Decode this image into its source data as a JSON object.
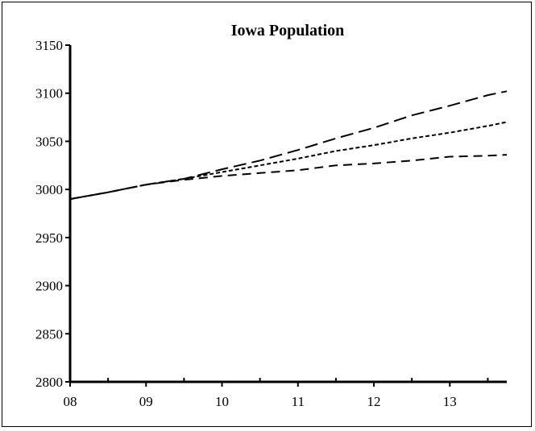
{
  "chart_data": {
    "type": "line",
    "title": "Iowa Population",
    "xlabel": "",
    "ylabel": "",
    "ylim": [
      2800,
      3150
    ],
    "yticks": [
      2800,
      2850,
      2900,
      2950,
      3000,
      3050,
      3100,
      3150
    ],
    "xlim": [
      2008,
      2013.75
    ],
    "xticks": [
      {
        "value": 2008,
        "label": "08"
      },
      {
        "value": 2009,
        "label": "09"
      },
      {
        "value": 2010,
        "label": "10"
      },
      {
        "value": 2011,
        "label": "11"
      },
      {
        "value": 2012,
        "label": "12"
      },
      {
        "value": 2013,
        "label": "13"
      }
    ],
    "grid": false,
    "legend": "none",
    "series": [
      {
        "style": "long-dash",
        "x": [
          2008,
          2008.5,
          2009,
          2009.5,
          2010,
          2010.5,
          2011,
          2011.5,
          2012,
          2012.5,
          2013,
          2013.5,
          2013.75
        ],
        "y": [
          2990,
          2997,
          3005,
          3011,
          3021,
          3030,
          3041,
          3053,
          3064,
          3077,
          3087,
          3098,
          3102
        ]
      },
      {
        "style": "short-dash",
        "x": [
          2008,
          2008.5,
          2009,
          2009.5,
          2010,
          2010.5,
          2011,
          2011.5,
          2012,
          2012.5,
          2013,
          2013.5,
          2013.75
        ],
        "y": [
          2990,
          2997,
          3005,
          3011,
          3018,
          3025,
          3032,
          3040,
          3046,
          3053,
          3059,
          3066,
          3070
        ]
      },
      {
        "style": "medium-dash",
        "x": [
          2008,
          2008.5,
          2009,
          2009.5,
          2010,
          2010.5,
          2011,
          2011.5,
          2012,
          2012.5,
          2013,
          2013.5,
          2013.75
        ],
        "y": [
          2990,
          2997,
          3005,
          3010,
          3014,
          3017,
          3020,
          3025,
          3027,
          3030,
          3034,
          3035,
          3036
        ]
      }
    ]
  }
}
